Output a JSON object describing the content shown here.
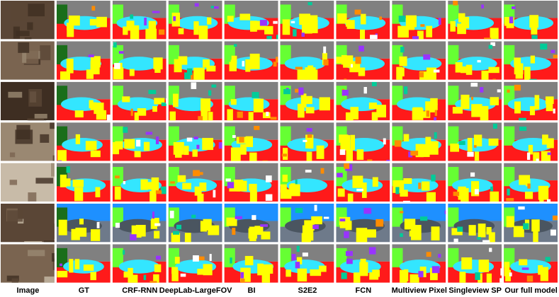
{
  "columns": [
    "Image",
    "GT",
    "CRF-RNN",
    "DeepLab-LargeFOV",
    "BI",
    "S2E2",
    "FCN",
    "Multiview Pixel",
    "Singleview SP",
    "Our full model"
  ]
}
